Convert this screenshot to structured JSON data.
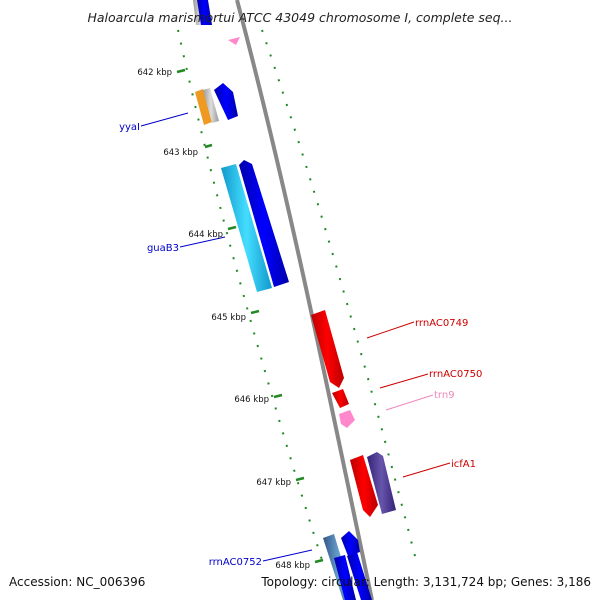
{
  "title": "Haloarcula marismortui ATCC 43049 chromosome I, complete seq...",
  "footer": {
    "accession": "Accession: NC_006396",
    "summary": "Topology: circular; Length: 3,131,724 bp; Genes: 3,186"
  },
  "ticks": [
    "642 kbp",
    "643 kbp",
    "644 kbp",
    "645 kbp",
    "646 kbp",
    "647 kbp",
    "648 kbp"
  ],
  "genes": [
    {
      "label": "yyaI",
      "color": "#0000cc"
    },
    {
      "label": "guaB3",
      "color": "#0000cc"
    },
    {
      "label": "rrnAC0749",
      "color": "#cc0000"
    },
    {
      "label": "rrnAC0750",
      "color": "#cc0000"
    },
    {
      "label": "trn9",
      "color": "#ee88bb"
    },
    {
      "label": "icfA1",
      "color": "#cc0000"
    },
    {
      "label": "rrnAC0752",
      "color": "#0000cc"
    }
  ],
  "colors": {
    "backbone": "#888888",
    "tick_dash": "#228822",
    "blue_feature": "#0000ee",
    "cyan_feature": "#22bbee",
    "red_feature": "#ee0000",
    "pink_feature": "#ff88cc",
    "purple_feature": "#554499",
    "orange_feature": "#ee9922",
    "steel_feature": "#4477aa"
  }
}
